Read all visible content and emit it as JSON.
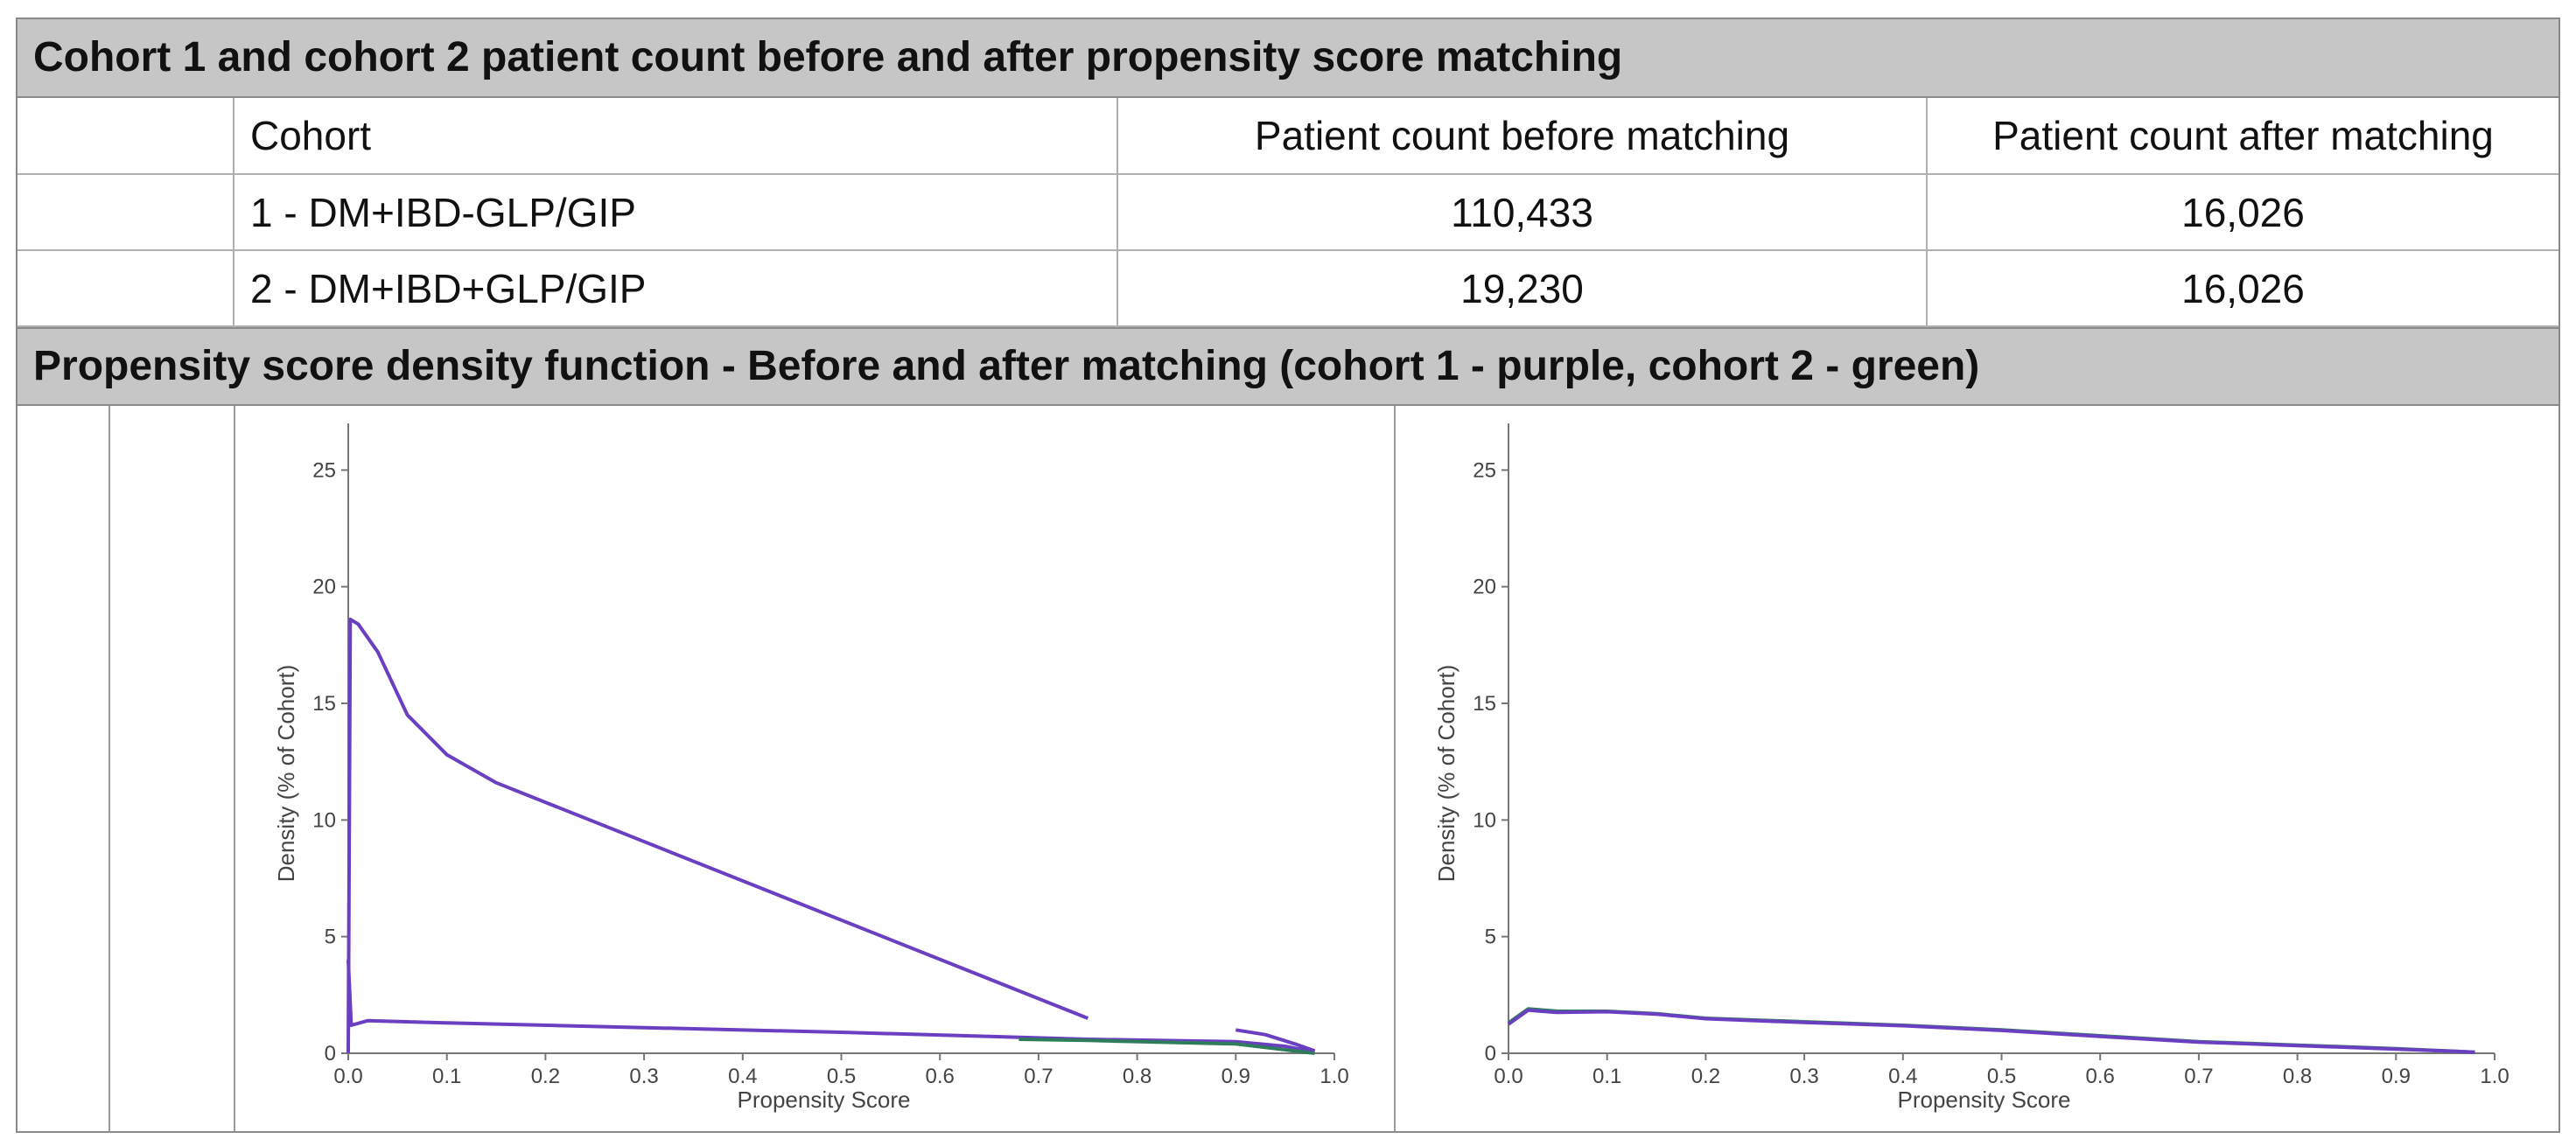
{
  "header1": "Cohort 1 and cohort 2 patient count before and after propensity score matching",
  "table": {
    "columns": [
      "Cohort",
      "Patient count before matching",
      "Patient count after matching"
    ],
    "rows": [
      {
        "cohort": "1 - DM+IBD-GLP/GIP",
        "before": "110,433",
        "after": "16,026"
      },
      {
        "cohort": "2 - DM+IBD+GLP/GIP",
        "before": "19,230",
        "after": "16,026"
      }
    ]
  },
  "header2": "Propensity score density function - Before and after matching (cohort 1 - purple, cohort 2 - green)",
  "colors": {
    "cohort1": "#6a3fc1",
    "cohort2": "#2e7d5a",
    "header_bg": "#c6c6c6"
  },
  "chart_data": [
    {
      "type": "area",
      "xlabel": "Propensity Score",
      "ylabel": "Density (% of Cohort)",
      "xlim": [
        0,
        1.0
      ],
      "ylim": [
        0,
        27
      ],
      "xticks": [
        "0.0",
        "0.1",
        "0.2",
        "0.3",
        "0.4",
        "0.5",
        "0.6",
        "0.7",
        "0.8",
        "0.9",
        "1.0"
      ],
      "yticks": [
        "0",
        "5",
        "10",
        "15",
        "20",
        "25"
      ],
      "series": [
        {
          "color": "#6a3fc1",
          "x": [
            0.0,
            0.002,
            0.01,
            0.03,
            0.06,
            0.1,
            0.15,
            0.75
          ],
          "y": [
            0.0,
            18.6,
            18.4,
            17.2,
            14.5,
            12.8,
            11.6,
            1.5
          ]
        },
        {
          "color": "#6a3fc1",
          "x": [
            0.0,
            0.003,
            0.02,
            0.1,
            0.3,
            0.5,
            0.75,
            0.9,
            0.95,
            0.98
          ],
          "y": [
            4.0,
            1.2,
            1.4,
            1.3,
            1.1,
            0.9,
            0.6,
            0.5,
            0.3,
            0.05
          ]
        },
        {
          "color": "#2e7d5a",
          "x": [
            0.68,
            0.75,
            0.85,
            0.9,
            0.94,
            0.98
          ],
          "y": [
            0.6,
            0.55,
            0.45,
            0.4,
            0.2,
            0.0
          ]
        },
        {
          "color": "#6a3fc1",
          "x": [
            0.9,
            0.93,
            0.96,
            0.98
          ],
          "y": [
            1.0,
            0.8,
            0.4,
            0.1
          ]
        }
      ]
    },
    {
      "type": "line",
      "xlabel": "Propensity Score",
      "ylabel": "Density (% of Cohort)",
      "xlim": [
        0,
        1.0
      ],
      "ylim": [
        0,
        27
      ],
      "xticks": [
        "0.0",
        "0.1",
        "0.2",
        "0.3",
        "0.4",
        "0.5",
        "0.6",
        "0.7",
        "0.8",
        "0.9",
        "1.0"
      ],
      "yticks": [
        "0",
        "5",
        "10",
        "15",
        "20",
        "25"
      ],
      "series": [
        {
          "color": "#2e7d5a",
          "x": [
            0.0,
            0.02,
            0.05,
            0.1,
            0.15,
            0.2,
            0.3,
            0.4,
            0.5,
            0.6,
            0.7,
            0.8,
            0.9,
            0.98
          ],
          "y": [
            1.3,
            1.9,
            1.8,
            1.8,
            1.7,
            1.5,
            1.35,
            1.2,
            1.0,
            0.75,
            0.5,
            0.35,
            0.2,
            0.05
          ]
        },
        {
          "color": "#6a3fc1",
          "x": [
            0.0,
            0.02,
            0.05,
            0.1,
            0.15,
            0.2,
            0.3,
            0.4,
            0.5,
            0.6,
            0.7,
            0.8,
            0.9,
            0.98
          ],
          "y": [
            1.25,
            1.85,
            1.75,
            1.78,
            1.68,
            1.48,
            1.32,
            1.18,
            0.98,
            0.72,
            0.48,
            0.33,
            0.18,
            0.05
          ]
        }
      ]
    }
  ]
}
